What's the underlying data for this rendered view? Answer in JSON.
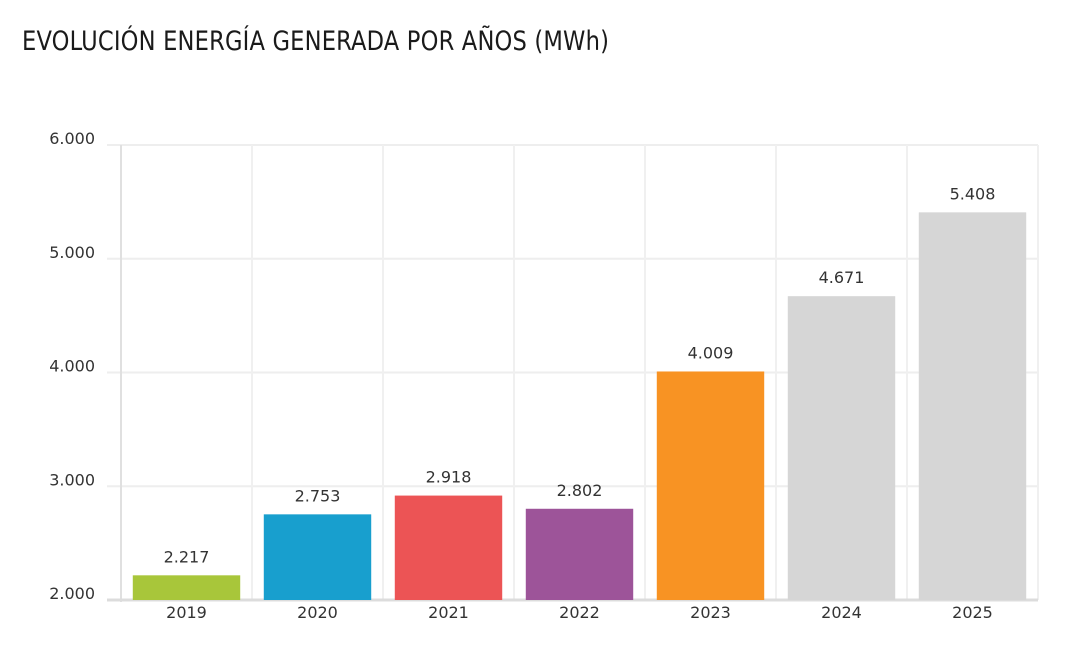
{
  "chart_data": {
    "type": "bar",
    "title": "EVOLUCIÓN ENERGÍA GENERADA POR AÑOS (MWh)",
    "xlabel": "",
    "ylabel": "",
    "categories": [
      "2019",
      "2020",
      "2021",
      "2022",
      "2023",
      "2024",
      "2025"
    ],
    "values": [
      2217,
      2753,
      2918,
      2802,
      4009,
      4671,
      5408
    ],
    "data_labels": [
      "2.217",
      "2.753",
      "2.918",
      "2.802",
      "4.009",
      "4.671",
      "5.408"
    ],
    "colors": [
      "#a8c63a",
      "#189fce",
      "#ec5455",
      "#9d5499",
      "#f89323",
      "#d6d6d6",
      "#d6d6d6"
    ],
    "ylim": [
      2000,
      6000
    ],
    "yticks": [
      2000,
      3000,
      4000,
      5000,
      6000
    ],
    "ytick_labels": [
      "2.000",
      "3.000",
      "4.000",
      "5.000",
      "6.000"
    ],
    "grid": true,
    "legend": "none"
  }
}
